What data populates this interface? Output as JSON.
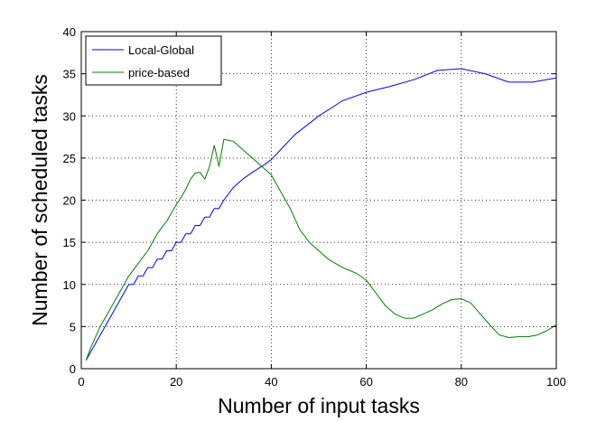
{
  "chart_data": {
    "type": "line",
    "title": "",
    "xlabel": "Number of input tasks",
    "ylabel": "Number of scheduled tasks",
    "xlim": [
      0,
      100
    ],
    "ylim": [
      0,
      40
    ],
    "xticks": [
      0,
      20,
      40,
      60,
      80,
      100
    ],
    "yticks": [
      0,
      5,
      10,
      15,
      20,
      25,
      30,
      35,
      40
    ],
    "grid": true,
    "legend_position": "top-left",
    "series": [
      {
        "name": "Local-Global",
        "color": "#0000ff",
        "x": [
          1,
          2,
          3,
          4,
          5,
          6,
          7,
          8,
          9,
          10,
          11,
          12,
          13,
          14,
          15,
          16,
          17,
          18,
          19,
          20,
          21,
          22,
          23,
          24,
          25,
          26,
          27,
          28,
          29,
          30,
          32,
          34,
          36,
          38,
          40,
          42,
          45,
          50,
          55,
          60,
          65,
          70,
          75,
          80,
          85,
          90,
          95,
          100
        ],
        "y": [
          1,
          2,
          3,
          4,
          5,
          6,
          7,
          8,
          9,
          10,
          10,
          11,
          11,
          12,
          12,
          13,
          13,
          14,
          14,
          15,
          15,
          16,
          16,
          17,
          17,
          18,
          18,
          19,
          19,
          20,
          21.5,
          22.5,
          23.3,
          24,
          24.8,
          26,
          27.8,
          30,
          31.8,
          32.8,
          33.5,
          34.3,
          35.4,
          35.6,
          35,
          34,
          34,
          34.5
        ]
      },
      {
        "name": "price-based",
        "color": "#008000",
        "x": [
          1,
          2,
          4,
          6,
          8,
          10,
          12,
          14,
          15,
          16,
          17,
          18,
          19,
          20,
          21,
          22,
          23,
          24,
          25,
          26,
          27,
          28,
          29,
          30,
          32,
          34,
          36,
          38,
          40,
          42,
          44,
          46,
          48,
          50,
          52,
          55,
          58,
          60,
          62,
          64,
          66,
          68,
          70,
          72,
          74,
          76,
          78,
          80,
          82,
          84,
          86,
          88,
          90,
          92,
          94,
          96,
          98,
          100
        ],
        "y": [
          1,
          2.5,
          5,
          7,
          9,
          11,
          12.5,
          14,
          15,
          16,
          16.8,
          17.5,
          18.5,
          19.5,
          20.3,
          21.3,
          22.5,
          23.2,
          23.3,
          22.5,
          24,
          26.5,
          24,
          27.2,
          27,
          26,
          25,
          24,
          23,
          21,
          19,
          16.5,
          15,
          14,
          13,
          12,
          11.3,
          10.5,
          9,
          7.5,
          6.5,
          6,
          6,
          6.5,
          7,
          7.7,
          8.2,
          8.3,
          7.8,
          6.5,
          5.2,
          4,
          3.7,
          3.8,
          3.8,
          4,
          4.5,
          5.2
        ]
      }
    ]
  }
}
